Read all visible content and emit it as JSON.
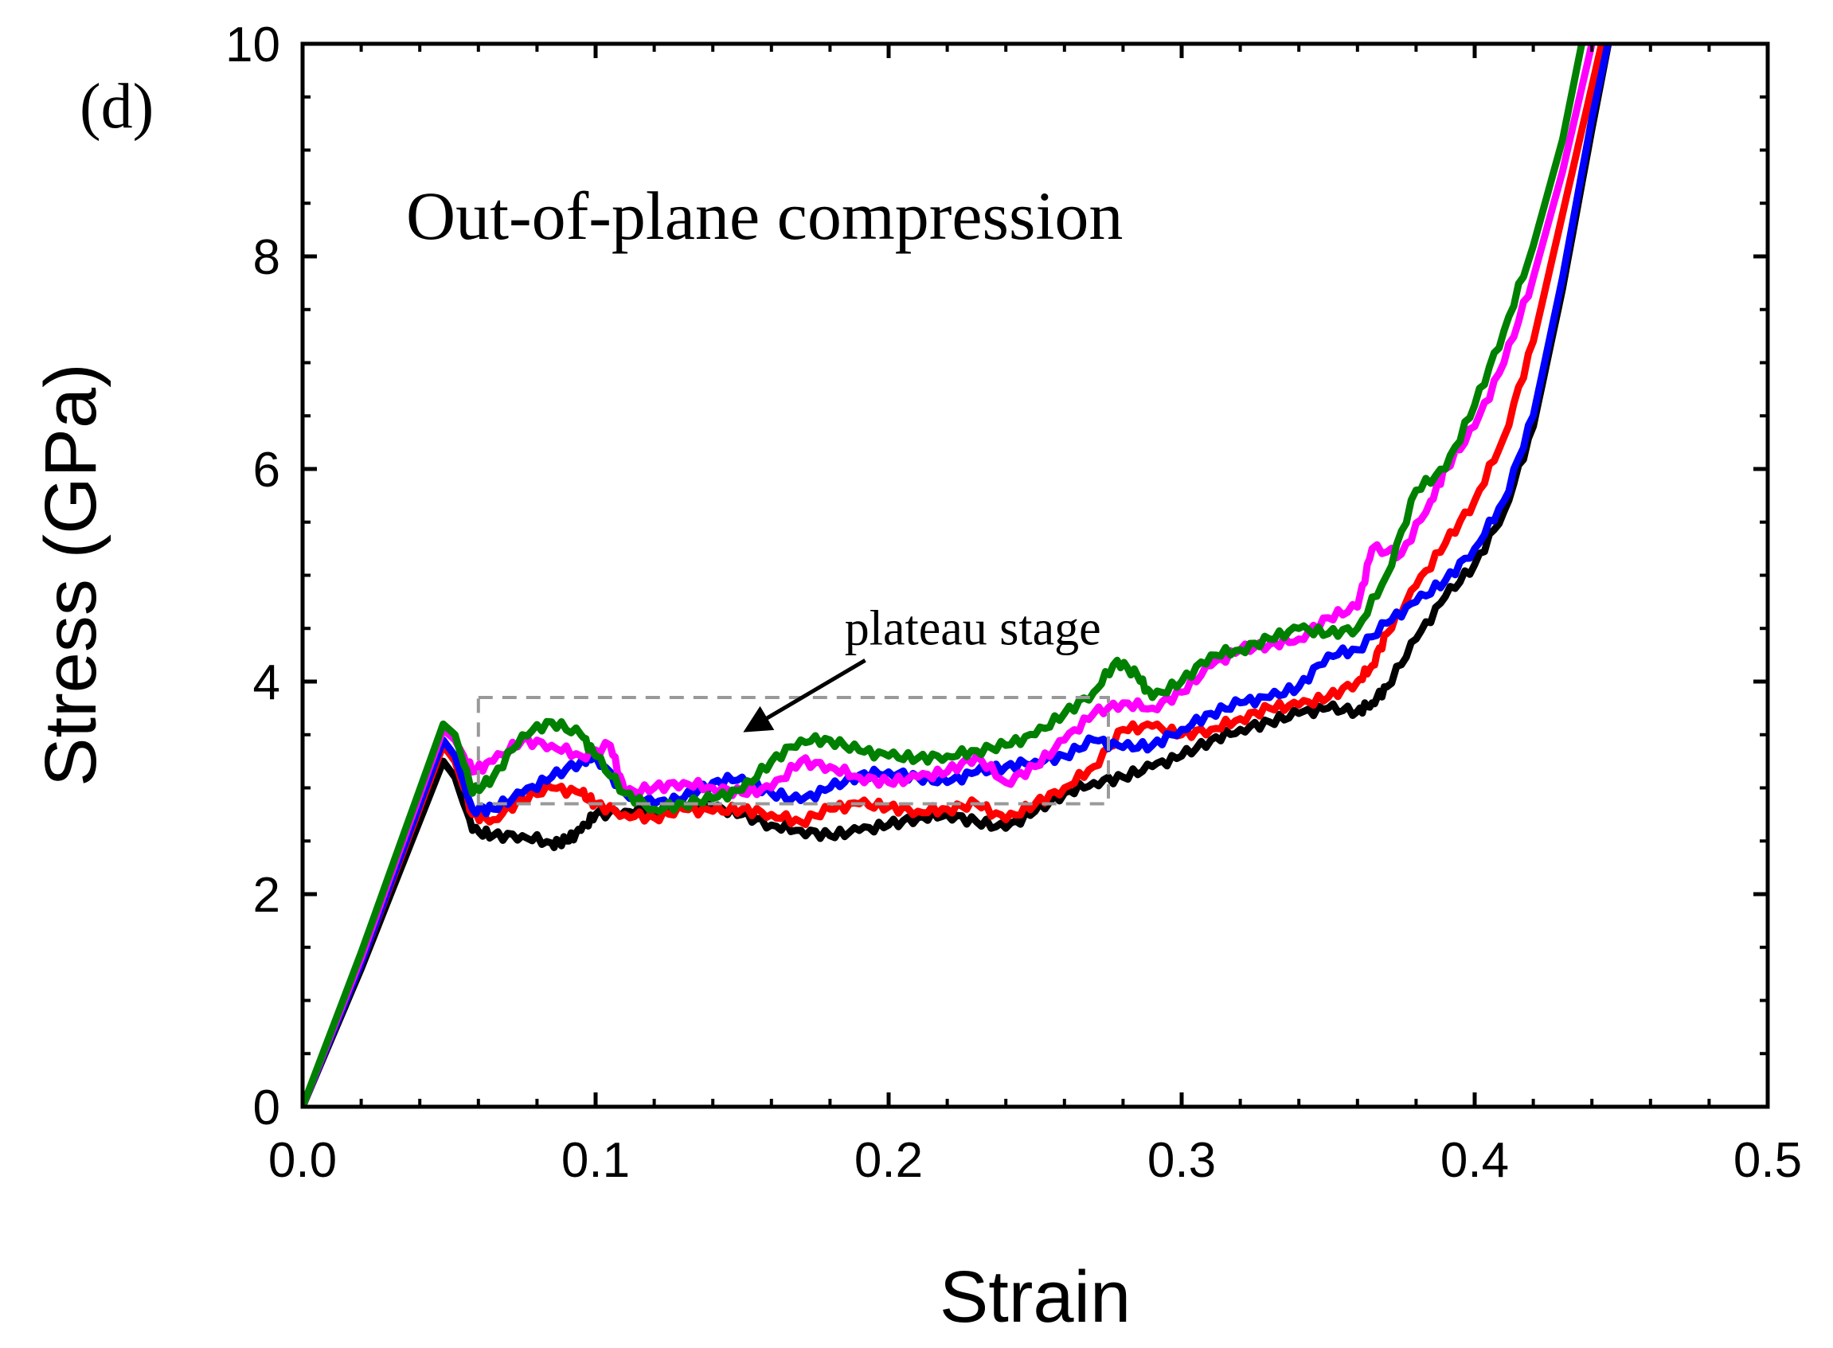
{
  "chart_data": {
    "type": "line",
    "panel_label": "(d)",
    "title": "Out-of-plane compression",
    "xlabel": "Strain",
    "ylabel": "Stress (GPa)",
    "xlim": [
      0.0,
      0.5
    ],
    "ylim": [
      0,
      10
    ],
    "xticks": [
      "0.0",
      "0.1",
      "0.2",
      "0.3",
      "0.4",
      "0.5"
    ],
    "yticks": [
      "0",
      "2",
      "4",
      "6",
      "8",
      "10"
    ],
    "annotation": {
      "text": "plateau stage",
      "box_strain": [
        0.06,
        0.275
      ],
      "box_stress": [
        2.85,
        3.85
      ],
      "arrow_from": [
        0.192,
        4.2
      ],
      "arrow_to": [
        0.152,
        3.55
      ]
    },
    "series": [
      {
        "name": "black",
        "color": "#000000",
        "points": [
          [
            0,
            0
          ],
          [
            0.02,
            1.3
          ],
          [
            0.048,
            3.25
          ],
          [
            0.052,
            3.1
          ],
          [
            0.058,
            2.6
          ],
          [
            0.065,
            2.55
          ],
          [
            0.075,
            2.55
          ],
          [
            0.085,
            2.48
          ],
          [
            0.09,
            2.5
          ],
          [
            0.095,
            2.6
          ],
          [
            0.1,
            2.75
          ],
          [
            0.11,
            2.78
          ],
          [
            0.12,
            2.8
          ],
          [
            0.13,
            2.82
          ],
          [
            0.14,
            2.82
          ],
          [
            0.15,
            2.75
          ],
          [
            0.16,
            2.65
          ],
          [
            0.17,
            2.6
          ],
          [
            0.18,
            2.55
          ],
          [
            0.19,
            2.6
          ],
          [
            0.2,
            2.65
          ],
          [
            0.21,
            2.72
          ],
          [
            0.22,
            2.75
          ],
          [
            0.23,
            2.68
          ],
          [
            0.24,
            2.62
          ],
          [
            0.25,
            2.78
          ],
          [
            0.26,
            2.95
          ],
          [
            0.27,
            3.05
          ],
          [
            0.28,
            3.1
          ],
          [
            0.29,
            3.2
          ],
          [
            0.3,
            3.3
          ],
          [
            0.31,
            3.45
          ],
          [
            0.32,
            3.55
          ],
          [
            0.33,
            3.62
          ],
          [
            0.34,
            3.7
          ],
          [
            0.35,
            3.75
          ],
          [
            0.36,
            3.72
          ],
          [
            0.365,
            3.8
          ],
          [
            0.37,
            3.95
          ],
          [
            0.38,
            4.4
          ],
          [
            0.39,
            4.8
          ],
          [
            0.4,
            5.1
          ],
          [
            0.41,
            5.6
          ],
          [
            0.42,
            6.4
          ],
          [
            0.43,
            7.7
          ],
          [
            0.44,
            9.2
          ],
          [
            0.447,
            10.2
          ]
        ]
      },
      {
        "name": "red",
        "color": "#ff0000",
        "points": [
          [
            0,
            0
          ],
          [
            0.02,
            1.35
          ],
          [
            0.048,
            3.4
          ],
          [
            0.052,
            3.25
          ],
          [
            0.058,
            2.75
          ],
          [
            0.065,
            2.7
          ],
          [
            0.075,
            2.9
          ],
          [
            0.085,
            3.0
          ],
          [
            0.095,
            2.95
          ],
          [
            0.1,
            2.85
          ],
          [
            0.11,
            2.75
          ],
          [
            0.12,
            2.72
          ],
          [
            0.13,
            2.8
          ],
          [
            0.14,
            2.78
          ],
          [
            0.15,
            2.8
          ],
          [
            0.16,
            2.75
          ],
          [
            0.17,
            2.68
          ],
          [
            0.18,
            2.8
          ],
          [
            0.19,
            2.85
          ],
          [
            0.2,
            2.82
          ],
          [
            0.21,
            2.78
          ],
          [
            0.22,
            2.8
          ],
          [
            0.23,
            2.85
          ],
          [
            0.24,
            2.7
          ],
          [
            0.25,
            2.85
          ],
          [
            0.26,
            3.0
          ],
          [
            0.27,
            3.2
          ],
          [
            0.28,
            3.55
          ],
          [
            0.29,
            3.58
          ],
          [
            0.3,
            3.5
          ],
          [
            0.31,
            3.55
          ],
          [
            0.32,
            3.65
          ],
          [
            0.33,
            3.75
          ],
          [
            0.34,
            3.78
          ],
          [
            0.35,
            3.85
          ],
          [
            0.36,
            4.0
          ],
          [
            0.365,
            4.15
          ],
          [
            0.37,
            4.45
          ],
          [
            0.38,
            4.9
          ],
          [
            0.39,
            5.3
          ],
          [
            0.4,
            5.7
          ],
          [
            0.41,
            6.3
          ],
          [
            0.42,
            7.2
          ],
          [
            0.43,
            8.4
          ],
          [
            0.44,
            9.6
          ],
          [
            0.445,
            10.2
          ]
        ]
      },
      {
        "name": "blue",
        "color": "#0000ff",
        "points": [
          [
            0,
            0
          ],
          [
            0.02,
            1.35
          ],
          [
            0.048,
            3.45
          ],
          [
            0.052,
            3.3
          ],
          [
            0.058,
            2.8
          ],
          [
            0.065,
            2.8
          ],
          [
            0.075,
            2.95
          ],
          [
            0.085,
            3.1
          ],
          [
            0.095,
            3.25
          ],
          [
            0.1,
            3.3
          ],
          [
            0.11,
            2.95
          ],
          [
            0.12,
            2.85
          ],
          [
            0.13,
            2.9
          ],
          [
            0.14,
            3.05
          ],
          [
            0.15,
            3.1
          ],
          [
            0.16,
            2.95
          ],
          [
            0.17,
            2.88
          ],
          [
            0.18,
            3.0
          ],
          [
            0.19,
            3.12
          ],
          [
            0.2,
            3.15
          ],
          [
            0.21,
            3.1
          ],
          [
            0.22,
            3.05
          ],
          [
            0.23,
            3.15
          ],
          [
            0.24,
            3.2
          ],
          [
            0.25,
            3.25
          ],
          [
            0.26,
            3.3
          ],
          [
            0.27,
            3.45
          ],
          [
            0.28,
            3.38
          ],
          [
            0.29,
            3.4
          ],
          [
            0.3,
            3.55
          ],
          [
            0.31,
            3.7
          ],
          [
            0.32,
            3.8
          ],
          [
            0.33,
            3.85
          ],
          [
            0.34,
            3.95
          ],
          [
            0.35,
            4.25
          ],
          [
            0.36,
            4.3
          ],
          [
            0.37,
            4.55
          ],
          [
            0.38,
            4.75
          ],
          [
            0.39,
            4.95
          ],
          [
            0.4,
            5.25
          ],
          [
            0.41,
            5.7
          ],
          [
            0.42,
            6.5
          ],
          [
            0.43,
            7.8
          ],
          [
            0.44,
            9.3
          ],
          [
            0.447,
            10.2
          ]
        ]
      },
      {
        "name": "magenta",
        "color": "#ff00ff",
        "points": [
          [
            0,
            0
          ],
          [
            0.02,
            1.4
          ],
          [
            0.048,
            3.55
          ],
          [
            0.052,
            3.45
          ],
          [
            0.058,
            3.15
          ],
          [
            0.065,
            3.25
          ],
          [
            0.075,
            3.45
          ],
          [
            0.085,
            3.4
          ],
          [
            0.095,
            3.3
          ],
          [
            0.105,
            3.4
          ],
          [
            0.11,
            2.95
          ],
          [
            0.12,
            3.0
          ],
          [
            0.13,
            3.05
          ],
          [
            0.14,
            3.0
          ],
          [
            0.15,
            2.95
          ],
          [
            0.16,
            3.0
          ],
          [
            0.17,
            3.25
          ],
          [
            0.18,
            3.2
          ],
          [
            0.19,
            3.1
          ],
          [
            0.2,
            3.05
          ],
          [
            0.21,
            3.1
          ],
          [
            0.22,
            3.15
          ],
          [
            0.23,
            3.3
          ],
          [
            0.24,
            3.05
          ],
          [
            0.25,
            3.2
          ],
          [
            0.26,
            3.45
          ],
          [
            0.27,
            3.7
          ],
          [
            0.28,
            3.8
          ],
          [
            0.29,
            3.75
          ],
          [
            0.3,
            3.9
          ],
          [
            0.31,
            4.15
          ],
          [
            0.32,
            4.3
          ],
          [
            0.33,
            4.35
          ],
          [
            0.34,
            4.4
          ],
          [
            0.35,
            4.6
          ],
          [
            0.36,
            4.7
          ],
          [
            0.365,
            5.25
          ],
          [
            0.375,
            5.2
          ],
          [
            0.385,
            5.7
          ],
          [
            0.39,
            6.0
          ],
          [
            0.4,
            6.4
          ],
          [
            0.41,
            7.0
          ],
          [
            0.42,
            7.8
          ],
          [
            0.43,
            8.8
          ],
          [
            0.44,
            10.0
          ],
          [
            0.443,
            10.2
          ]
        ]
      },
      {
        "name": "green",
        "color": "#008000",
        "points": [
          [
            0,
            0
          ],
          [
            0.02,
            1.45
          ],
          [
            0.048,
            3.6
          ],
          [
            0.052,
            3.5
          ],
          [
            0.058,
            2.95
          ],
          [
            0.065,
            3.1
          ],
          [
            0.075,
            3.5
          ],
          [
            0.085,
            3.62
          ],
          [
            0.095,
            3.5
          ],
          [
            0.1,
            3.3
          ],
          [
            0.11,
            2.95
          ],
          [
            0.12,
            2.8
          ],
          [
            0.13,
            2.85
          ],
          [
            0.14,
            2.9
          ],
          [
            0.15,
            2.98
          ],
          [
            0.16,
            3.25
          ],
          [
            0.17,
            3.45
          ],
          [
            0.18,
            3.45
          ],
          [
            0.19,
            3.35
          ],
          [
            0.2,
            3.3
          ],
          [
            0.21,
            3.28
          ],
          [
            0.22,
            3.3
          ],
          [
            0.23,
            3.35
          ],
          [
            0.24,
            3.4
          ],
          [
            0.25,
            3.5
          ],
          [
            0.26,
            3.7
          ],
          [
            0.27,
            3.9
          ],
          [
            0.278,
            4.2
          ],
          [
            0.285,
            4.05
          ],
          [
            0.29,
            3.85
          ],
          [
            0.3,
            4.0
          ],
          [
            0.31,
            4.25
          ],
          [
            0.32,
            4.3
          ],
          [
            0.33,
            4.4
          ],
          [
            0.34,
            4.5
          ],
          [
            0.35,
            4.45
          ],
          [
            0.36,
            4.5
          ],
          [
            0.37,
            5.0
          ],
          [
            0.38,
            5.8
          ],
          [
            0.39,
            6.0
          ],
          [
            0.4,
            6.6
          ],
          [
            0.41,
            7.3
          ],
          [
            0.42,
            8.1
          ],
          [
            0.43,
            9.1
          ],
          [
            0.438,
            10.2
          ]
        ]
      }
    ]
  }
}
